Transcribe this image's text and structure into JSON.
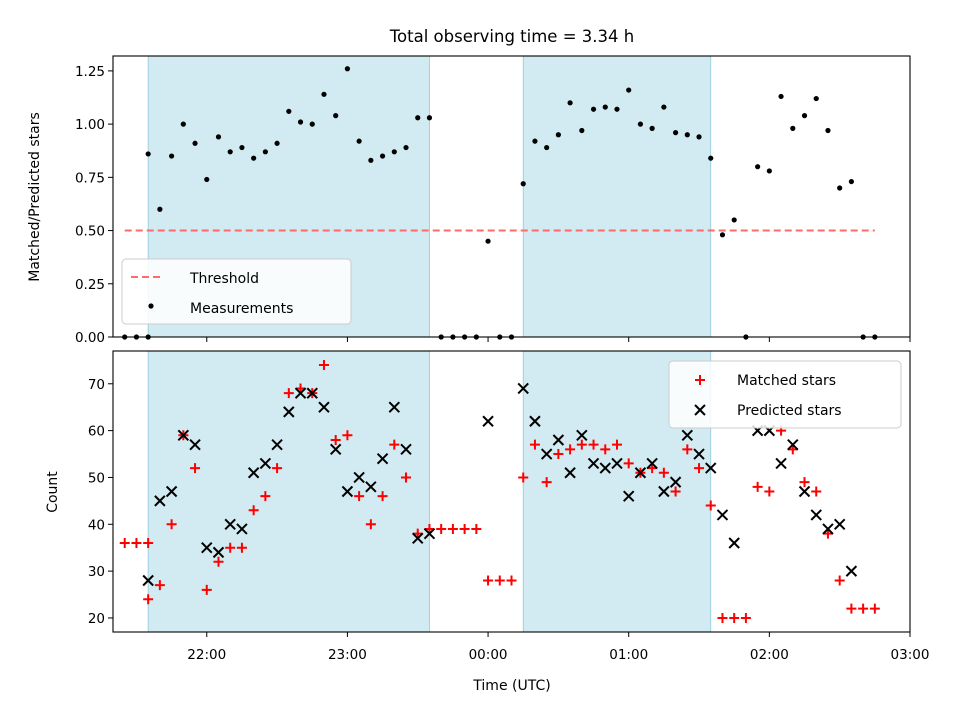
{
  "chart_data": [
    {
      "type": "scatter",
      "title": "Total observing time = 3.34 h",
      "xlabel": "",
      "ylabel": "Matched/Predicted stars",
      "xlim": [
        "21:20",
        "03:00"
      ],
      "ylim": [
        0,
        1.32
      ],
      "yticks": [
        "0.00",
        "0.25",
        "0.50",
        "0.75",
        "1.00",
        "1.25"
      ],
      "shaded_spans": [
        [
          "21:35",
          "23:35"
        ],
        [
          "00:15",
          "01:35"
        ]
      ],
      "shade_color": "#add8e6",
      "threshold": {
        "name": "Threshold",
        "y": 0.5,
        "x_range": [
          "21:25",
          "02:45"
        ],
        "color": "#ff6b6b"
      },
      "series": [
        {
          "name": "Measurements",
          "marker": "dot",
          "color": "#000000",
          "points": [
            [
              "21:25",
              0
            ],
            [
              "21:30",
              0
            ],
            [
              "21:35",
              0
            ],
            [
              "21:35",
              0.86
            ],
            [
              "21:40",
              0.6
            ],
            [
              "21:45",
              0.85
            ],
            [
              "21:50",
              1.0
            ],
            [
              "21:55",
              0.91
            ],
            [
              "22:00",
              0.74
            ],
            [
              "22:05",
              0.94
            ],
            [
              "22:10",
              0.87
            ],
            [
              "22:15",
              0.89
            ],
            [
              "22:20",
              0.84
            ],
            [
              "22:25",
              0.87
            ],
            [
              "22:30",
              0.91
            ],
            [
              "22:35",
              1.06
            ],
            [
              "22:40",
              1.01
            ],
            [
              "22:45",
              1.0
            ],
            [
              "22:50",
              1.14
            ],
            [
              "22:55",
              1.04
            ],
            [
              "23:00",
              1.26
            ],
            [
              "23:05",
              0.92
            ],
            [
              "23:10",
              0.83
            ],
            [
              "23:15",
              0.85
            ],
            [
              "23:20",
              0.87
            ],
            [
              "23:25",
              0.89
            ],
            [
              "23:30",
              1.03
            ],
            [
              "23:35",
              1.03
            ],
            [
              "23:40",
              0
            ],
            [
              "23:45",
              0
            ],
            [
              "23:50",
              0
            ],
            [
              "23:55",
              0
            ],
            [
              "00:00",
              0.45
            ],
            [
              "00:05",
              0
            ],
            [
              "00:10",
              0
            ],
            [
              "00:15",
              0.72
            ],
            [
              "00:20",
              0.92
            ],
            [
              "00:25",
              0.89
            ],
            [
              "00:30",
              0.95
            ],
            [
              "00:35",
              1.1
            ],
            [
              "00:40",
              0.97
            ],
            [
              "00:45",
              1.07
            ],
            [
              "00:50",
              1.08
            ],
            [
              "00:55",
              1.07
            ],
            [
              "01:00",
              1.16
            ],
            [
              "01:05",
              1.0
            ],
            [
              "01:10",
              0.98
            ],
            [
              "01:15",
              1.08
            ],
            [
              "01:20",
              0.96
            ],
            [
              "01:25",
              0.95
            ],
            [
              "01:30",
              0.94
            ],
            [
              "01:35",
              0.84
            ],
            [
              "01:40",
              0.48
            ],
            [
              "01:45",
              0.55
            ],
            [
              "01:50",
              0
            ],
            [
              "01:55",
              0.8
            ],
            [
              "02:00",
              0.78
            ],
            [
              "02:05",
              1.13
            ],
            [
              "02:10",
              0.98
            ],
            [
              "02:15",
              1.04
            ],
            [
              "02:20",
              1.12
            ],
            [
              "02:25",
              0.97
            ],
            [
              "02:30",
              0.7
            ],
            [
              "02:35",
              0.73
            ],
            [
              "02:40",
              0
            ],
            [
              "02:45",
              0
            ]
          ]
        }
      ],
      "legend": {
        "position": "lower-left",
        "entries": [
          "Threshold",
          "Measurements"
        ]
      }
    },
    {
      "type": "scatter",
      "title": "",
      "xlabel": "Time (UTC)",
      "ylabel": "Count",
      "xlim": [
        "21:20",
        "03:00"
      ],
      "ylim": [
        17,
        77
      ],
      "yticks": [
        "20",
        "30",
        "40",
        "50",
        "60",
        "70"
      ],
      "xticks": [
        "22:00",
        "23:00",
        "00:00",
        "01:00",
        "02:00",
        "03:00"
      ],
      "shaded_spans": [
        [
          "21:35",
          "23:35"
        ],
        [
          "00:15",
          "01:35"
        ]
      ],
      "series": [
        {
          "name": "Matched stars",
          "marker": "plus",
          "color": "#ff0000",
          "points": [
            [
              "21:25",
              36
            ],
            [
              "21:30",
              36
            ],
            [
              "21:35",
              36
            ],
            [
              "21:35",
              24
            ],
            [
              "21:40",
              27
            ],
            [
              "21:45",
              40
            ],
            [
              "21:50",
              59
            ],
            [
              "21:55",
              52
            ],
            [
              "22:00",
              26
            ],
            [
              "22:05",
              32
            ],
            [
              "22:10",
              35
            ],
            [
              "22:15",
              35
            ],
            [
              "22:20",
              43
            ],
            [
              "22:25",
              46
            ],
            [
              "22:30",
              52
            ],
            [
              "22:35",
              68
            ],
            [
              "22:40",
              69
            ],
            [
              "22:45",
              68
            ],
            [
              "22:50",
              74
            ],
            [
              "22:55",
              58
            ],
            [
              "23:00",
              59
            ],
            [
              "23:05",
              46
            ],
            [
              "23:10",
              40
            ],
            [
              "23:15",
              46
            ],
            [
              "23:20",
              57
            ],
            [
              "23:25",
              50
            ],
            [
              "23:30",
              38
            ],
            [
              "23:35",
              39
            ],
            [
              "23:40",
              39
            ],
            [
              "23:45",
              39
            ],
            [
              "23:50",
              39
            ],
            [
              "23:55",
              39
            ],
            [
              "00:00",
              28
            ],
            [
              "00:05",
              28
            ],
            [
              "00:10",
              28
            ],
            [
              "00:15",
              50
            ],
            [
              "00:20",
              57
            ],
            [
              "00:25",
              49
            ],
            [
              "00:30",
              55
            ],
            [
              "00:35",
              56
            ],
            [
              "00:40",
              57
            ],
            [
              "00:45",
              57
            ],
            [
              "00:50",
              56
            ],
            [
              "00:55",
              57
            ],
            [
              "01:00",
              53
            ],
            [
              "01:05",
              51
            ],
            [
              "01:10",
              52
            ],
            [
              "01:15",
              51
            ],
            [
              "01:20",
              47
            ],
            [
              "01:25",
              56
            ],
            [
              "01:30",
              52
            ],
            [
              "01:35",
              44
            ],
            [
              "01:40",
              20
            ],
            [
              "01:45",
              20
            ],
            [
              "01:50",
              20
            ],
            [
              "01:55",
              48
            ],
            [
              "02:00",
              47
            ],
            [
              "02:05",
              60
            ],
            [
              "02:10",
              56
            ],
            [
              "02:15",
              49
            ],
            [
              "02:20",
              47
            ],
            [
              "02:25",
              38
            ],
            [
              "02:30",
              28
            ],
            [
              "02:35",
              22
            ],
            [
              "02:40",
              22
            ],
            [
              "02:45",
              22
            ]
          ]
        },
        {
          "name": "Predicted stars",
          "marker": "x",
          "color": "#000000",
          "points": [
            [
              "21:35",
              28
            ],
            [
              "21:40",
              45
            ],
            [
              "21:45",
              47
            ],
            [
              "21:50",
              59
            ],
            [
              "21:55",
              57
            ],
            [
              "22:00",
              35
            ],
            [
              "22:05",
              34
            ],
            [
              "22:10",
              40
            ],
            [
              "22:15",
              39
            ],
            [
              "22:20",
              51
            ],
            [
              "22:25",
              53
            ],
            [
              "22:30",
              57
            ],
            [
              "22:35",
              64
            ],
            [
              "22:40",
              68
            ],
            [
              "22:45",
              68
            ],
            [
              "22:50",
              65
            ],
            [
              "22:55",
              56
            ],
            [
              "23:00",
              47
            ],
            [
              "23:05",
              50
            ],
            [
              "23:10",
              48
            ],
            [
              "23:15",
              54
            ],
            [
              "23:20",
              65
            ],
            [
              "23:25",
              56
            ],
            [
              "23:30",
              37
            ],
            [
              "23:35",
              38
            ],
            [
              "00:00",
              62
            ],
            [
              "00:15",
              69
            ],
            [
              "00:20",
              62
            ],
            [
              "00:25",
              55
            ],
            [
              "00:30",
              58
            ],
            [
              "00:35",
              51
            ],
            [
              "00:40",
              59
            ],
            [
              "00:45",
              53
            ],
            [
              "00:50",
              52
            ],
            [
              "00:55",
              53
            ],
            [
              "01:00",
              46
            ],
            [
              "01:05",
              51
            ],
            [
              "01:10",
              53
            ],
            [
              "01:15",
              47
            ],
            [
              "01:20",
              49
            ],
            [
              "01:25",
              59
            ],
            [
              "01:30",
              55
            ],
            [
              "01:35",
              52
            ],
            [
              "01:40",
              42
            ],
            [
              "01:45",
              36
            ],
            [
              "01:55",
              60
            ],
            [
              "02:00",
              60
            ],
            [
              "02:05",
              53
            ],
            [
              "02:10",
              57
            ],
            [
              "02:15",
              47
            ],
            [
              "02:20",
              42
            ],
            [
              "02:25",
              39
            ],
            [
              "02:30",
              40
            ],
            [
              "02:35",
              30
            ]
          ]
        }
      ],
      "legend": {
        "position": "top-right",
        "entries": [
          "Matched stars",
          "Predicted stars"
        ]
      }
    }
  ]
}
